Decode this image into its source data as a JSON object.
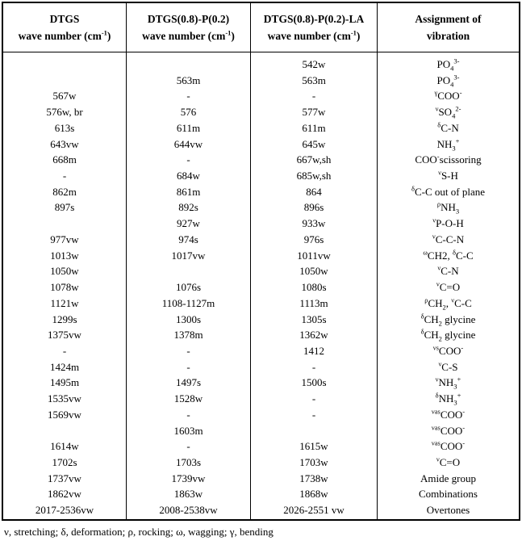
{
  "colors": {
    "text": "#000000",
    "border": "#000000",
    "background": "#ffffff"
  },
  "table": {
    "columns": [
      {
        "line1": "DTGS",
        "line2": "wave number (cm^-1^)"
      },
      {
        "line1": "DTGS(0.8)-P(0.2)",
        "line2": "wave number (cm^-1^)"
      },
      {
        "line1": "DTGS(0.8)-P(0.2)-LA",
        "line2": "wave number (cm^-1^)"
      },
      {
        "line1": "Assignment of",
        "line2": "vibration"
      }
    ],
    "rows": [
      {
        "c1": "",
        "c2": "",
        "c3": "542w",
        "a": "PO~4~^3-^"
      },
      {
        "c1": "",
        "c2": "563m",
        "c3": "563m",
        "a": "PO~4~^3-^"
      },
      {
        "c1": "567w",
        "c2": "-",
        "c3": "-",
        "a": "^γ^COO^-^"
      },
      {
        "c1": "576w, br",
        "c2": "576",
        "c3": "577w",
        "a": "^ν^SO~4~^2-^"
      },
      {
        "c1": "613s",
        "c2": "611m",
        "c3": "611m",
        "a": "^δ^C-N"
      },
      {
        "c1": "643vw",
        "c2": "644vw",
        "c3": "645w",
        "a": "NH~3~^+^"
      },
      {
        "c1": "668m",
        "c2": "-",
        "c3": "667w,sh",
        "a": "COO^-^scissoring"
      },
      {
        "c1": "-",
        "c2": "684w",
        "c3": "685w,sh",
        "a": "^ν^S-H"
      },
      {
        "c1": "862m",
        "c2": "861m",
        "c3": "864",
        "a": "^δ^C-C out of plane"
      },
      {
        "c1": "897s",
        "c2": "892s",
        "c3": "896s",
        "a": "^ρ^NH~3~"
      },
      {
        "c1": "",
        "c2": "927w",
        "c3": "933w",
        "a": "^ν^P-O-H"
      },
      {
        "c1": "977vw",
        "c2": "974s",
        "c3": "976s",
        "a": "^ν^C-C-N"
      },
      {
        "c1": "1013w",
        "c2": "1017vw",
        "c3": "1011vw",
        "a": "^ω^CH2, ^δ^C-C"
      },
      {
        "c1": "1050w",
        "c2": "",
        "c3": "1050w",
        "a": "^ν^C-N"
      },
      {
        "c1": "1078w",
        "c2": "1076s",
        "c3": "1080s",
        "a": "^ν^C=O"
      },
      {
        "c1": "1121w",
        "c2": "1108-1127m",
        "c3": "1113m",
        "a": "^ρ^CH~2~, ^ν^C-C"
      },
      {
        "c1": "1299s",
        "c2": "1300s",
        "c3": "1305s",
        "a": "^δ^CH~2~ glycine"
      },
      {
        "c1": "1375vw",
        "c2": "1378m",
        "c3": "1362w",
        "a": "^δ^CH~2~ glycine"
      },
      {
        "c1": "-",
        "c2": "-",
        "c3": "1412",
        "a": "^νs^COO^-^"
      },
      {
        "c1": "1424m",
        "c2": "-",
        "c3": "-",
        "a": "^ν^C-S"
      },
      {
        "c1": "1495m",
        "c2": "1497s",
        "c3": "1500s",
        "a": "^ν^NH~3~^+^"
      },
      {
        "c1": "1535vw",
        "c2": "1528w",
        "c3": "-",
        "a": "^δ^NH~3~^+^"
      },
      {
        "c1": "1569vw",
        "c2": "-",
        "c3": "-",
        "a": "^νas^COO^-^"
      },
      {
        "c1": "",
        "c2": "1603m",
        "c3": "",
        "a": "^νas^COO^-^"
      },
      {
        "c1": "1614w",
        "c2": "-",
        "c3": "1615w",
        "a": "^νas^COO^-^"
      },
      {
        "c1": "1702s",
        "c2": "1703s",
        "c3": "1703w",
        "a": "^ν^C=O"
      },
      {
        "c1": "1737vw",
        "c2": "1739vw",
        "c3": "1738w",
        "a": "Amide group"
      },
      {
        "c1": "1862vw",
        "c2": "1863w",
        "c3": "1868w",
        "a": "Combinations"
      },
      {
        "c1": "2017-2536vw",
        "c2": "2008-2538vw",
        "c3": "2026-2551 vw",
        "a": "Overtones"
      }
    ]
  },
  "footnote": "ν, stretching; δ, deformation; ρ, rocking; ω, wagging; γ, bending"
}
